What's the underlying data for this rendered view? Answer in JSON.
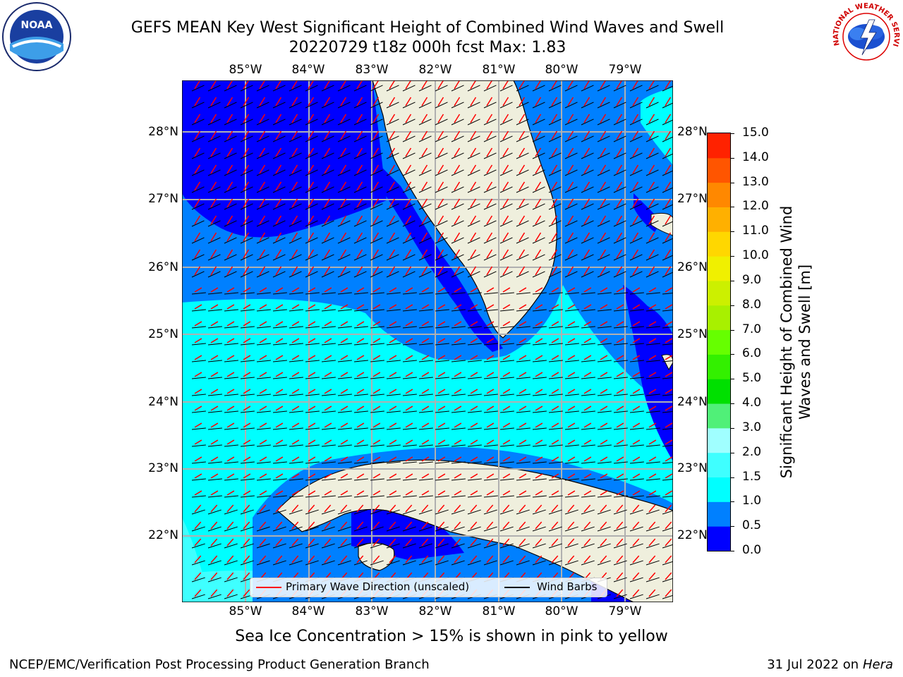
{
  "title": {
    "line1": "GEFS MEAN Key West Significant Height of Combined Wind Waves and Swell",
    "line2": "20220729 t18z 000h fcst   Max: 1.83"
  },
  "logos": {
    "left": "NOAA",
    "right_text": "NATIONAL WEATHER SERVICE"
  },
  "map": {
    "x_ticks": [
      "85°W",
      "84°W",
      "83°W",
      "82°W",
      "81°W",
      "80°W",
      "79°W"
    ],
    "y_ticks": [
      "28°N",
      "27°N",
      "26°N",
      "25°N",
      "24°N",
      "23°N",
      "22°N"
    ],
    "land_color": "#efefdd",
    "grid_color": "#b0b0b0"
  },
  "legend": {
    "wave_dir": "Primary Wave Direction (unscaled)",
    "wind_barbs": "Wind Barbs"
  },
  "colorbar": {
    "title": "Significant Height of Combined Wind Waves and Swell [m]",
    "labels": [
      "15.0",
      "14.0",
      "13.0",
      "12.0",
      "11.0",
      "10.0",
      "9.0",
      "8.0",
      "7.0",
      "6.0",
      "5.0",
      "4.0",
      "3.0",
      "2.0",
      "1.5",
      "1.0",
      "0.5",
      "0.0"
    ],
    "colors_bottom_to_top": [
      "#0000ff",
      "#0080ff",
      "#00ffff",
      "#3fffff",
      "#a0ffff",
      "#50f078",
      "#00e000",
      "#33f000",
      "#66ff00",
      "#a8f000",
      "#ccf000",
      "#f0f000",
      "#ffd700",
      "#ffb000",
      "#ff8800",
      "#ff5500",
      "#ff2200",
      "#ff0000"
    ]
  },
  "subtitle": "Sea Ice Concentration > 15% is shown in pink to yellow",
  "footer": {
    "left": "NCEP/EMC/Verification Post Processing Product Generation Branch",
    "right_date": "31 Jul 2022 on",
    "right_host": "Hera"
  }
}
